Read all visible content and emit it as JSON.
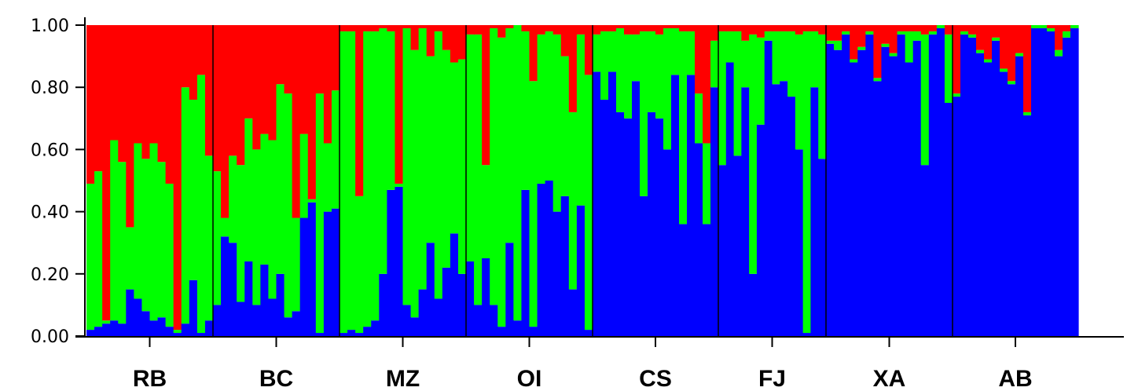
{
  "chart_data": {
    "type": "bar",
    "subtype": "stacked-100-percent",
    "groups": [
      "RB",
      "BC",
      "MZ",
      "OI",
      "CS",
      "FJ",
      "XA",
      "AB"
    ],
    "group_sizes": [
      16,
      16,
      16,
      16,
      16,
      14,
      16,
      16
    ],
    "colors": {
      "cluster1": "#0000ff",
      "cluster2": "#00ff00",
      "cluster3": "#ff0000",
      "divider": "#000000"
    },
    "series": [
      {
        "color": "#0000ff",
        "values": [
          0.02,
          0.03,
          0.04,
          0.05,
          0.04,
          0.15,
          0.12,
          0.08,
          0.05,
          0.06,
          0.03,
          0.01,
          0.04,
          0.18,
          0.01,
          0.05,
          0.1,
          0.32,
          0.3,
          0.11,
          0.24,
          0.1,
          0.23,
          0.12,
          0.2,
          0.06,
          0.08,
          0.38,
          0.43,
          0.01,
          0.4,
          0.41,
          0.01,
          0.02,
          0.01,
          0.03,
          0.05,
          0.2,
          0.47,
          0.48,
          0.1,
          0.06,
          0.15,
          0.3,
          0.12,
          0.22,
          0.33,
          0.2,
          0.24,
          0.1,
          0.25,
          0.1,
          0.03,
          0.3,
          0.05,
          0.47,
          0.03,
          0.49,
          0.5,
          0.4,
          0.45,
          0.15,
          0.42,
          0.02,
          0.85,
          0.76,
          0.85,
          0.72,
          0.7,
          0.82,
          0.45,
          0.72,
          0.7,
          0.6,
          0.84,
          0.36,
          0.84,
          0.62,
          0.36,
          0.8,
          0.55,
          0.88,
          0.58,
          0.8,
          0.2,
          0.68,
          0.95,
          0.81,
          0.82,
          0.77,
          0.6,
          0.01,
          0.8,
          0.57,
          0.94,
          0.92,
          0.97,
          0.88,
          0.92,
          0.97,
          0.82,
          0.93,
          0.9,
          0.97,
          0.88,
          0.95,
          0.55,
          0.97,
          0.99,
          0.75,
          0.77,
          0.97,
          0.96,
          0.91,
          0.88,
          0.95,
          0.85,
          0.81,
          0.9,
          0.71,
          0.99,
          0.99,
          0.98,
          0.9,
          0.96,
          0.99
        ]
      },
      {
        "color": "#00ff00",
        "values": [
          0.47,
          0.5,
          0.01,
          0.58,
          0.52,
          0.2,
          0.5,
          0.49,
          0.57,
          0.5,
          0.46,
          0.01,
          0.76,
          0.58,
          0.83,
          0.53,
          0.43,
          0.06,
          0.28,
          0.44,
          0.46,
          0.5,
          0.42,
          0.51,
          0.61,
          0.72,
          0.3,
          0.27,
          0.01,
          0.77,
          0.22,
          0.38,
          0.97,
          0.96,
          0.44,
          0.95,
          0.93,
          0.79,
          0.51,
          0.01,
          0.89,
          0.86,
          0.84,
          0.6,
          0.86,
          0.7,
          0.55,
          0.69,
          0.73,
          0.87,
          0.3,
          0.89,
          0.93,
          0.69,
          0.95,
          0.51,
          0.79,
          0.48,
          0.48,
          0.57,
          0.45,
          0.57,
          0.55,
          0.82,
          0.12,
          0.22,
          0.13,
          0.27,
          0.27,
          0.15,
          0.53,
          0.26,
          0.27,
          0.39,
          0.15,
          0.62,
          0.14,
          0.16,
          0.26,
          0.15,
          0.43,
          0.1,
          0.4,
          0.15,
          0.77,
          0.28,
          0.03,
          0.17,
          0.16,
          0.21,
          0.37,
          0.97,
          0.18,
          0.4,
          0.01,
          0.03,
          0.01,
          0.01,
          0.01,
          0.01,
          0.01,
          0.01,
          0.01,
          0.01,
          0.1,
          0.03,
          0.42,
          0.01,
          0.01,
          0.22,
          0.01,
          0.01,
          0.01,
          0.01,
          0.01,
          0.01,
          0.01,
          0.01,
          0.01,
          0.01,
          0.01,
          0.01,
          0.01,
          0.02,
          0.02,
          0.01
        ]
      }
    ],
    "ylim": [
      0,
      1
    ],
    "yticks": [
      "0.00",
      "0.20",
      "0.40",
      "0.60",
      "0.80",
      "1.00"
    ],
    "title": "",
    "xlabel": "",
    "ylabel": "",
    "grid": false
  }
}
